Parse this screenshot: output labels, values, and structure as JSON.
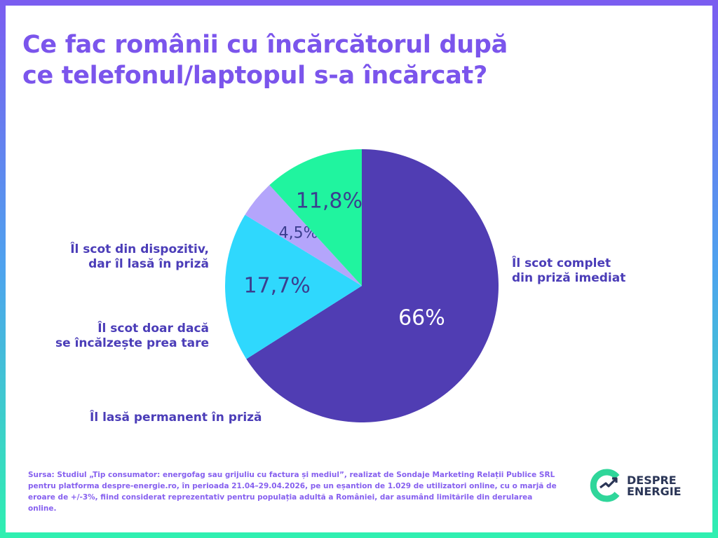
{
  "title": "Ce fac românii cu încărcătorul după ce telefonul/laptopul s-a încărcat?",
  "chart_data": {
    "type": "pie",
    "categories": [
      "Îl scot complet din priză imediat",
      "Îl lasă permanent în priză",
      "Îl scot doar dacă se încălzește prea tare",
      "Îl scot din dispozitiv, dar îl lasă în priză"
    ],
    "values": [
      66,
      17.7,
      4.5,
      11.8
    ],
    "value_labels": [
      "66%",
      "17,7%",
      "4,5%",
      "11,8%"
    ],
    "colors": [
      "#503db3",
      "#2fd8fd",
      "#b4a5fb",
      "#20f49f"
    ],
    "legend_placement": "labels beside slices"
  },
  "labels": {
    "complet": "Îl scot complet\ndin priză imediat",
    "permanent": "Îl lasă permanent în priză",
    "incalzeste": "Îl scot doar dacă\nse încălzește prea tare",
    "dispozitiv": "Îl scot din dispozitiv,\ndar îl lasă în priză"
  },
  "source": "Sursa: Studiul „Tip consumator: energofag sau grijuliu cu factura și mediul”, realizat de Sondaje Marketing Relații Publice SRL pentru platforma despre-energie.ro, în perioada 21.04–29.04.2026, pe un eșantion de 1.029 de utilizatori online, cu o marjă de eroare de +/-3%, fiind considerat reprezentativ pentru populația adultă a României, dar asumând limitările din derularea online.",
  "logo": {
    "line1": "DESPRE",
    "line2": "ENERGIE"
  }
}
